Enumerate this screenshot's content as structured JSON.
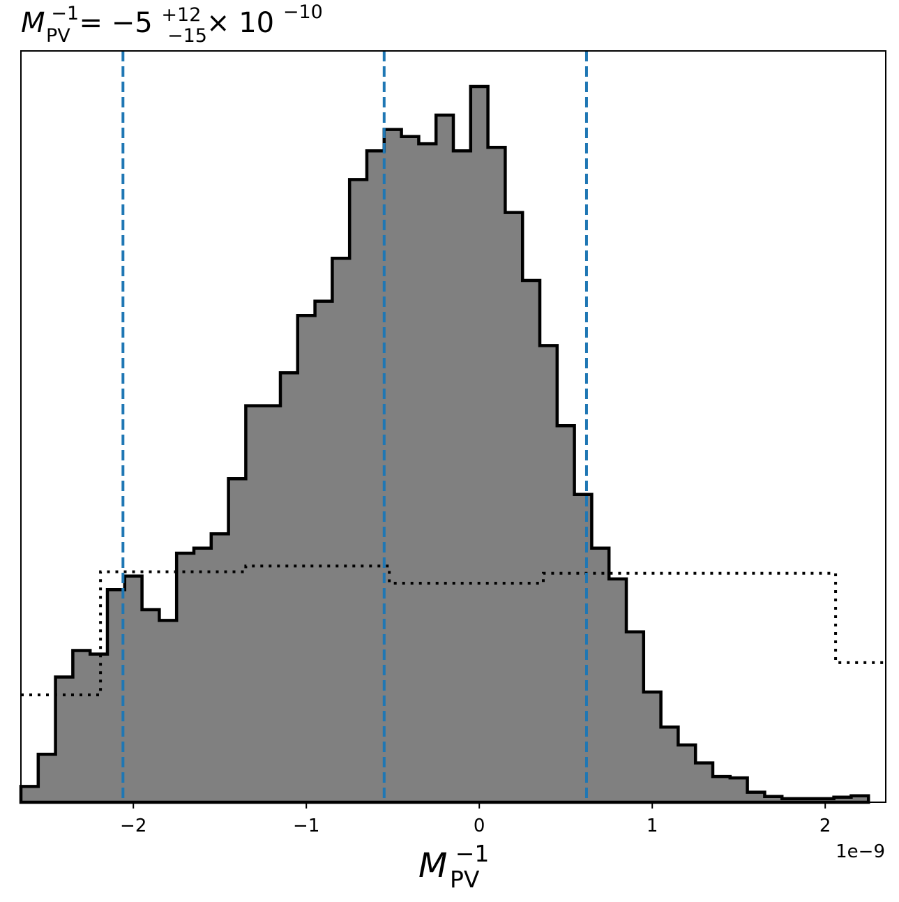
{
  "chart_data": {
    "type": "histogram",
    "title": {
      "lhs_symbol": "M",
      "lhs_sub": "PV",
      "lhs_sup": "−1",
      "equals": " = ",
      "value": "−5",
      "upper_err": "+12",
      "lower_err": "−15",
      "times": " × 10",
      "exponent": "−10"
    },
    "xlabel": {
      "symbol": "M",
      "sub": "PV",
      "sup": "−1"
    },
    "x_offset_text": "1e−9",
    "xlim": [
      -2.65e-09,
      2.35e-09
    ],
    "ylim": [
      0,
      1.0
    ],
    "x_ticks": [
      {
        "value": -2e-09,
        "label": "−2"
      },
      {
        "value": -1e-09,
        "label": "−1"
      },
      {
        "value": 0,
        "label": "0"
      },
      {
        "value": 1e-09,
        "label": "1"
      },
      {
        "value": 2e-09,
        "label": "2"
      }
    ],
    "histogram": {
      "edges": [
        -2.65e-09,
        -2.55e-09,
        -2.45e-09,
        -2.35e-09,
        -2.25e-09,
        -2.15e-09,
        -2.05e-09,
        -1.95e-09,
        -1.85e-09,
        -1.75e-09,
        -1.65e-09,
        -1.55e-09,
        -1.45e-09,
        -1.35e-09,
        -1.25e-09,
        -1.15e-09,
        -1.05e-09,
        -9.5e-10,
        -8.5e-10,
        -7.5e-10,
        -6.5e-10,
        -5.5e-10,
        -4.5e-10,
        -3.5e-10,
        -2.5e-10,
        -1.5e-10,
        -5e-11,
        5e-11,
        1.5e-10,
        2.5e-10,
        3.5e-10,
        4.5e-10,
        5.5e-10,
        6.5e-10,
        7.5e-10,
        8.5e-10,
        9.5e-10,
        1.05e-09,
        1.15e-09,
        1.25e-09,
        1.35e-09,
        1.45e-09,
        1.55e-09,
        1.65e-09,
        1.75e-09,
        1.85e-09,
        1.95e-09,
        2.05e-09,
        2.15e-09,
        2.25e-09
      ],
      "counts": [
        0.022,
        0.067,
        0.175,
        0.212,
        0.207,
        0.297,
        0.316,
        0.269,
        0.254,
        0.348,
        0.355,
        0.375,
        0.452,
        0.554,
        0.554,
        0.6,
        0.68,
        0.7,
        0.76,
        0.87,
        0.91,
        0.94,
        0.93,
        0.92,
        0.96,
        0.91,
        1.0,
        0.915,
        0.824,
        0.729,
        0.638,
        0.526,
        0.43,
        0.355,
        0.312,
        0.238,
        0.154,
        0.105,
        0.08,
        0.055,
        0.036,
        0.034,
        0.014,
        0.008,
        0.005,
        0.005,
        0.005,
        0.007,
        0.009
      ],
      "fill_color": "#808080",
      "edge_color": "#000000"
    },
    "prior": {
      "edges": [
        -2.65e-09,
        -2.19e-09,
        -1.35e-09,
        -5.2e-10,
        3.7e-10,
        2.06e-09,
        2.35e-09
      ],
      "values": [
        0.15,
        0.322,
        0.33,
        0.306,
        0.32,
        0.195
      ],
      "style": "dotted",
      "color": "#000000"
    },
    "quantile_lines": {
      "values": [
        -2.06e-09,
        -5.5e-10,
        6.2e-10
      ],
      "style": "dashed",
      "color": "#1f77b4"
    },
    "grid": false,
    "legend": "none"
  }
}
